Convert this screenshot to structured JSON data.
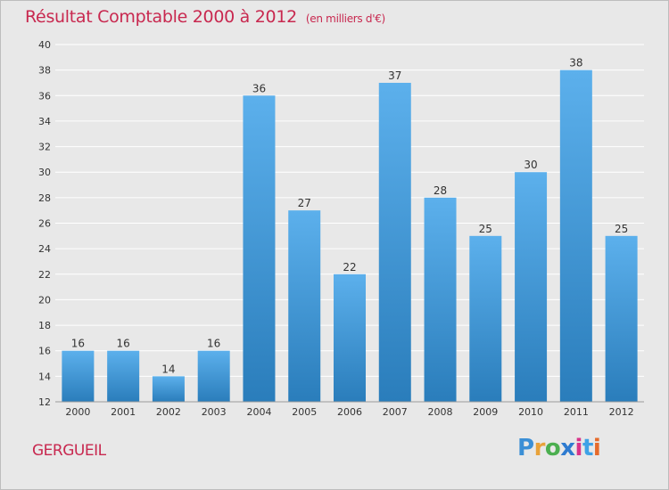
{
  "title": "Résultat Comptable 2000 à 2012",
  "subtitle": "(en milliers d'€)",
  "commune": "GERGUEIL",
  "logo": {
    "text": "Proxiti",
    "letter_colors": [
      "#3b8fd6",
      "#e8a23a",
      "#4caf50",
      "#2e7bd0",
      "#d8338a",
      "#3fa2e6",
      "#e66b2b"
    ]
  },
  "colors": {
    "bar_top": "#5cb0ec",
    "bar_bottom": "#2a7dbb",
    "background": "#e8e8e8",
    "grid": "#ffffff",
    "title": "#c8284f"
  },
  "chart_data": {
    "type": "bar",
    "categories": [
      "2000",
      "2001",
      "2002",
      "2003",
      "2004",
      "2005",
      "2006",
      "2007",
      "2008",
      "2009",
      "2010",
      "2011",
      "2012"
    ],
    "values": [
      16,
      16,
      14,
      16,
      36,
      27,
      22,
      37,
      28,
      25,
      30,
      38,
      25
    ],
    "ylim": [
      12,
      40
    ],
    "yticks": [
      12,
      14,
      16,
      18,
      20,
      22,
      24,
      26,
      28,
      30,
      32,
      34,
      36,
      38,
      40
    ],
    "grid": true,
    "xlabel": "",
    "ylabel": ""
  }
}
